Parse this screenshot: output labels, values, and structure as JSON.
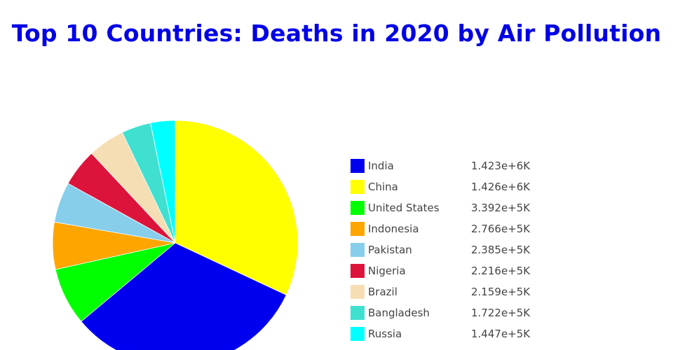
{
  "chart_data": {
    "type": "pie",
    "title": "Top 10 Countries: Deaths in 2020 by Air Pollution",
    "slices": [
      {
        "label": "China",
        "value": 1426000,
        "value_text": "1.426e+6K",
        "color": "#ffff00"
      },
      {
        "label": "India",
        "value": 1423000,
        "value_text": "1.423e+6K",
        "color": "#0000ee"
      },
      {
        "label": "United States",
        "value": 339200,
        "value_text": "3.392e+5K",
        "color": "#00ff00"
      },
      {
        "label": "Indonesia",
        "value": 276600,
        "value_text": "2.766e+5K",
        "color": "#ffa500"
      },
      {
        "label": "Pakistan",
        "value": 238500,
        "value_text": "2.385e+5K",
        "color": "#87ceeb"
      },
      {
        "label": "Nigeria",
        "value": 221600,
        "value_text": "2.216e+5K",
        "color": "#dc143c"
      },
      {
        "label": "Brazil",
        "value": 215900,
        "value_text": "2.159e+5K",
        "color": "#f5deb3"
      },
      {
        "label": "Bangladesh",
        "value": 172200,
        "value_text": "1.722e+5K",
        "color": "#40e0d0"
      },
      {
        "label": "Russia",
        "value": 144700,
        "value_text": "1.447e+5K",
        "color": "#00ffff"
      }
    ],
    "legend": [
      {
        "label": "India",
        "value_text": "1.423e+6K",
        "color": "#0000ee"
      },
      {
        "label": "China",
        "value_text": "1.426e+6K",
        "color": "#ffff00"
      },
      {
        "label": "United States",
        "value_text": "3.392e+5K",
        "color": "#00ff00"
      },
      {
        "label": "Indonesia",
        "value_text": "2.766e+5K",
        "color": "#ffa500"
      },
      {
        "label": "Pakistan",
        "value_text": "2.385e+5K",
        "color": "#87ceeb"
      },
      {
        "label": "Nigeria",
        "value_text": "2.216e+5K",
        "color": "#dc143c"
      },
      {
        "label": "Brazil",
        "value_text": "2.159e+5K",
        "color": "#f5deb3"
      },
      {
        "label": "Bangladesh",
        "value_text": "1.722e+5K",
        "color": "#40e0d0"
      },
      {
        "label": "Russia",
        "value_text": "1.447e+5K",
        "color": "#00ffff"
      }
    ],
    "legend_placement": "right",
    "title_color": "#0000e6"
  }
}
